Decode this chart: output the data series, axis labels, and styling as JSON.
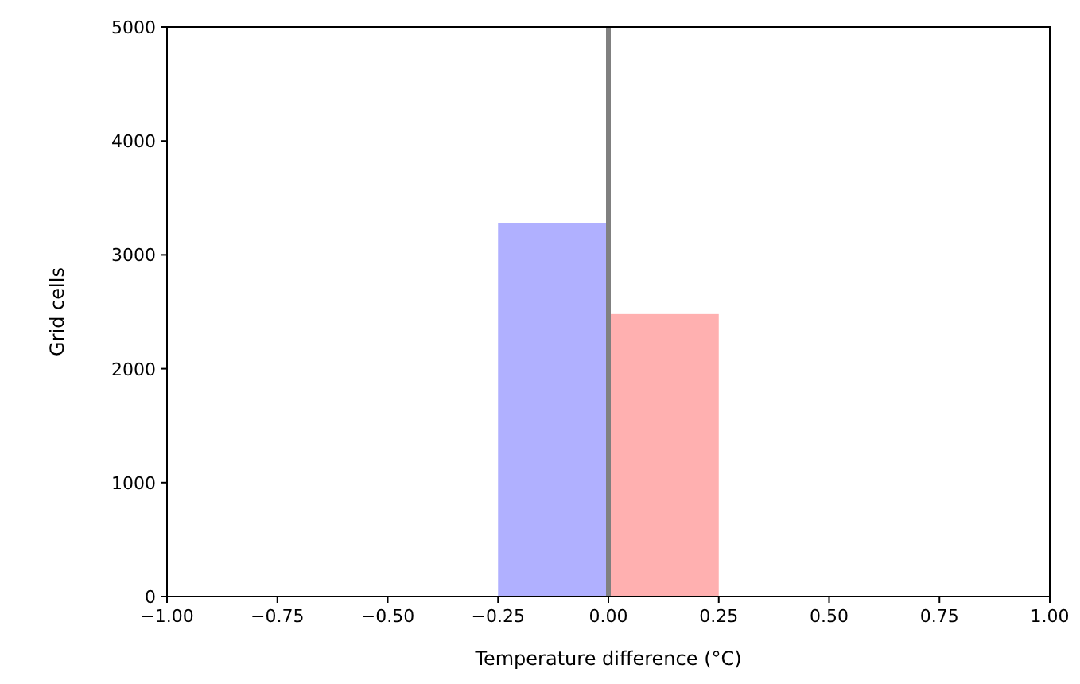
{
  "chart_data": {
    "type": "histogram",
    "xlabel": "Temperature difference (°C)",
    "ylabel": "Grid cells",
    "bins": [
      -0.25,
      0,
      0.25
    ],
    "values": [
      3280,
      2480
    ],
    "colors": [
      "#b0b0ff",
      "#ffb0b0"
    ],
    "xlim": [
      -1,
      1
    ],
    "xticks": [
      {
        "value": -1,
        "label": "−1.00"
      },
      {
        "value": -0.75,
        "label": "−0.75"
      },
      {
        "value": -0.5,
        "label": "−0.50"
      },
      {
        "value": -0.25,
        "label": "−0.25"
      },
      {
        "value": 0,
        "label": "0.00"
      },
      {
        "value": 0.25,
        "label": "0.25"
      },
      {
        "value": 0.5,
        "label": "0.50"
      },
      {
        "value": 0.75,
        "label": "0.75"
      },
      {
        "value": 1,
        "label": "1.00"
      }
    ],
    "ylim": [
      0,
      5000
    ],
    "yticks": [
      0,
      1000,
      2000,
      3000,
      4000,
      5000
    ],
    "ref_lines": [
      {
        "axis": "x",
        "value": 0,
        "color": "#808080"
      }
    ],
    "grid": false
  }
}
